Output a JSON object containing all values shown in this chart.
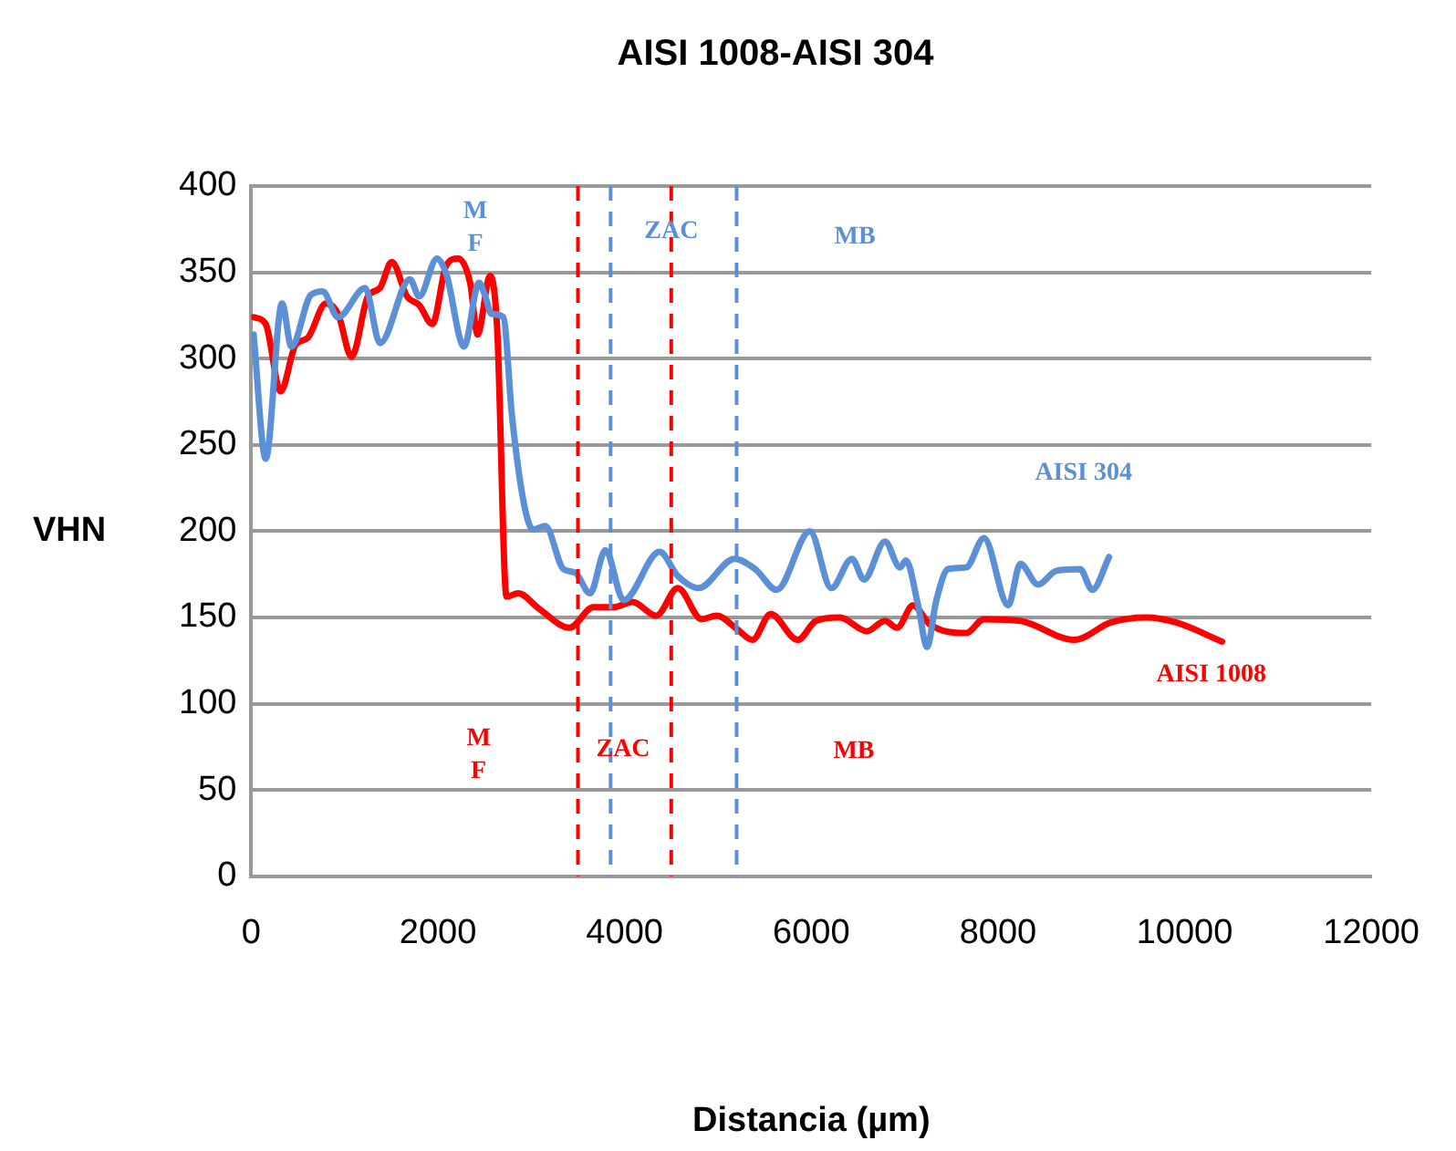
{
  "chart_data": {
    "type": "line",
    "title": "AISI 1008-AISI 304",
    "xlabel": "Distancia (µm)",
    "ylabel": "VHN",
    "xlim": [
      0,
      12000
    ],
    "xticks": [
      0,
      2000,
      4000,
      6000,
      8000,
      10000,
      12000
    ],
    "ylim": [
      0,
      400
    ],
    "yticks": [
      0,
      50,
      100,
      150,
      200,
      250,
      300,
      350,
      400
    ],
    "grid": "y",
    "legend": false,
    "marker": "none",
    "line_style": "solid",
    "series": [
      {
        "name": "AISI 304",
        "color": "#5b8fd6",
        "x": [
          25,
          155,
          330,
          430,
          640,
          765,
          930,
          1220,
          1380,
          1700,
          1800,
          1990,
          2090,
          2280,
          2440,
          2520,
          2570,
          2700,
          2795,
          2925,
          3020,
          3150,
          3345,
          3470,
          3630,
          3795,
          3990,
          4375,
          4570,
          4790,
          5180,
          5400,
          5630,
          5985,
          6215,
          6435,
          6565,
          6790,
          6950,
          7015,
          7145,
          7240,
          7340,
          7465,
          7660,
          7850,
          8110,
          8240,
          8430,
          8625,
          8880,
          9010,
          9190
        ],
        "values": [
          314,
          242,
          332,
          307,
          337,
          339,
          324,
          341,
          309,
          346,
          336,
          358,
          349,
          307,
          344,
          334,
          326,
          324,
          266,
          215,
          201,
          203,
          178,
          176,
          164,
          189,
          160,
          188,
          174,
          167,
          184,
          178,
          166,
          200,
          167,
          184,
          172,
          194,
          179,
          183,
          157,
          133,
          160,
          178,
          179,
          196,
          157,
          181,
          169,
          177,
          178,
          166,
          185
        ]
      },
      {
        "name": "AISI 1008",
        "color": "#ff0000",
        "x": [
          25,
          155,
          315,
          475,
          605,
          800,
          930,
          1075,
          1250,
          1380,
          1505,
          1670,
          1800,
          1940,
          2090,
          2215,
          2345,
          2425,
          2560,
          2635,
          2735,
          2860,
          3085,
          3410,
          3665,
          3890,
          4085,
          4340,
          4570,
          4825,
          4985,
          5210,
          5370,
          5565,
          5855,
          6050,
          6305,
          6595,
          6790,
          6920,
          7090,
          7270,
          7660,
          7850,
          8240,
          8820,
          9205,
          9590,
          9915,
          10400
        ],
        "values": [
          324,
          320,
          281,
          308,
          312,
          332,
          326,
          301,
          336,
          341,
          356,
          336,
          331,
          320,
          354,
          358,
          344,
          314,
          348,
          317,
          162,
          164,
          155,
          144,
          156,
          156,
          159,
          151,
          167,
          149,
          151,
          143,
          137,
          152,
          137,
          148,
          150,
          142,
          148,
          144,
          157,
          146,
          141,
          149,
          148,
          137,
          147,
          150,
          147,
          136
        ]
      }
    ],
    "ref_lines": [
      {
        "axis": "x",
        "value": 3850,
        "color": "#5b8fd6",
        "line_style": "dashed"
      },
      {
        "axis": "x",
        "value": 5200,
        "color": "#5b8fd6",
        "line_style": "dashed"
      },
      {
        "axis": "x",
        "value": 3500,
        "color": "#ff0000",
        "line_style": "dashed"
      },
      {
        "axis": "x",
        "value": 4500,
        "color": "#ff0000",
        "line_style": "dashed"
      }
    ],
    "annotations": [
      "M F",
      "ZAC",
      "MB",
      "M F",
      "ZAC",
      "MB"
    ]
  }
}
